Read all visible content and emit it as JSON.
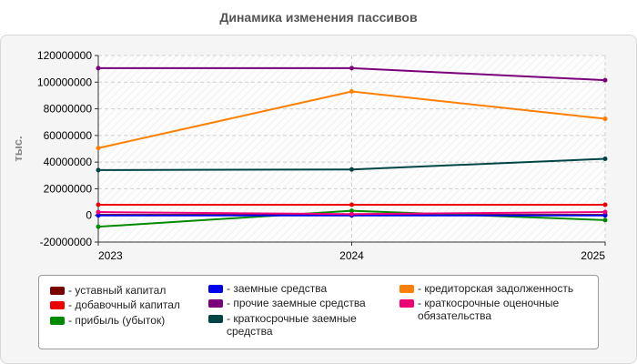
{
  "chart_data": {
    "type": "line",
    "title": "Динамика изменения пассивов",
    "xlabel": "",
    "ylabel": "тыс.",
    "x": [
      "2023",
      "2024",
      "2025"
    ],
    "ylim": [
      -20000000,
      120000000
    ],
    "yticks": [
      "120000000",
      "100000000",
      "80000000",
      "60000000",
      "40000000",
      "20000000",
      "0",
      "-20000000"
    ],
    "grid": true,
    "legend_position": "bottom",
    "series": [
      {
        "name": "уставный капитал",
        "color": "#7b0000",
        "values": [
          400000,
          400000,
          400000
        ]
      },
      {
        "name": "добавочный капитал",
        "color": "#ee0000",
        "values": [
          8000000,
          8000000,
          8000000
        ]
      },
      {
        "name": "прибыль (убыток)",
        "color": "#008a00",
        "values": [
          -8500000,
          3500000,
          -3500000
        ]
      },
      {
        "name": "заемные средства",
        "color": "#0000ee",
        "values": [
          0,
          0,
          0
        ]
      },
      {
        "name": "прочие заемные средства",
        "color": "#7a007a",
        "values": [
          110500000,
          110500000,
          101500000
        ]
      },
      {
        "name": "краткосрочные заемные средства",
        "color": "#004545",
        "values": [
          34000000,
          34500000,
          42500000
        ]
      },
      {
        "name": "кредиторская задолженность",
        "color": "#ff8000",
        "values": [
          50500000,
          93000000,
          72500000
        ]
      },
      {
        "name": "краткосрочные оценочные обязательства",
        "color": "#ee0077",
        "values": [
          2500000,
          1000000,
          2500000
        ]
      }
    ]
  },
  "legend": {
    "items": [
      {
        "label": "- уставный капитал"
      },
      {
        "label": "- добавочный капитал"
      },
      {
        "label": "- прибыль (убыток)"
      },
      {
        "label": "- заемные средства"
      },
      {
        "label": "- прочие заемные средства"
      },
      {
        "label": "- краткосрочные заемные средства"
      },
      {
        "label": "- кредиторская задолженность"
      },
      {
        "label": "- краткосрочные оценочные обязательства"
      }
    ]
  }
}
